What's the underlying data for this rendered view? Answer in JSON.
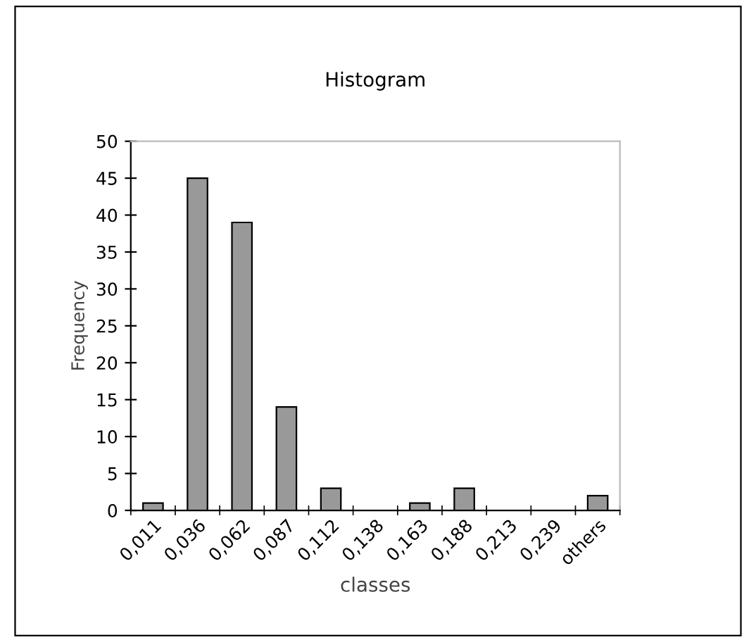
{
  "chart_data": {
    "type": "bar",
    "title": "Histogram",
    "xlabel": "classes",
    "ylabel": "Frequency",
    "categories": [
      "0,011",
      "0,036",
      "0,062",
      "0,087",
      "0,112",
      "0,138",
      "0,163",
      "0,188",
      "0,213",
      "0,239",
      "others"
    ],
    "values": [
      1,
      45,
      39,
      14,
      3,
      0,
      1,
      3,
      0,
      0,
      2
    ],
    "color": "#999999",
    "ylim": [
      0,
      50
    ],
    "yticks": [
      0,
      5,
      10,
      15,
      20,
      25,
      30,
      35,
      40,
      45,
      50
    ],
    "grid": false,
    "legend": false
  }
}
